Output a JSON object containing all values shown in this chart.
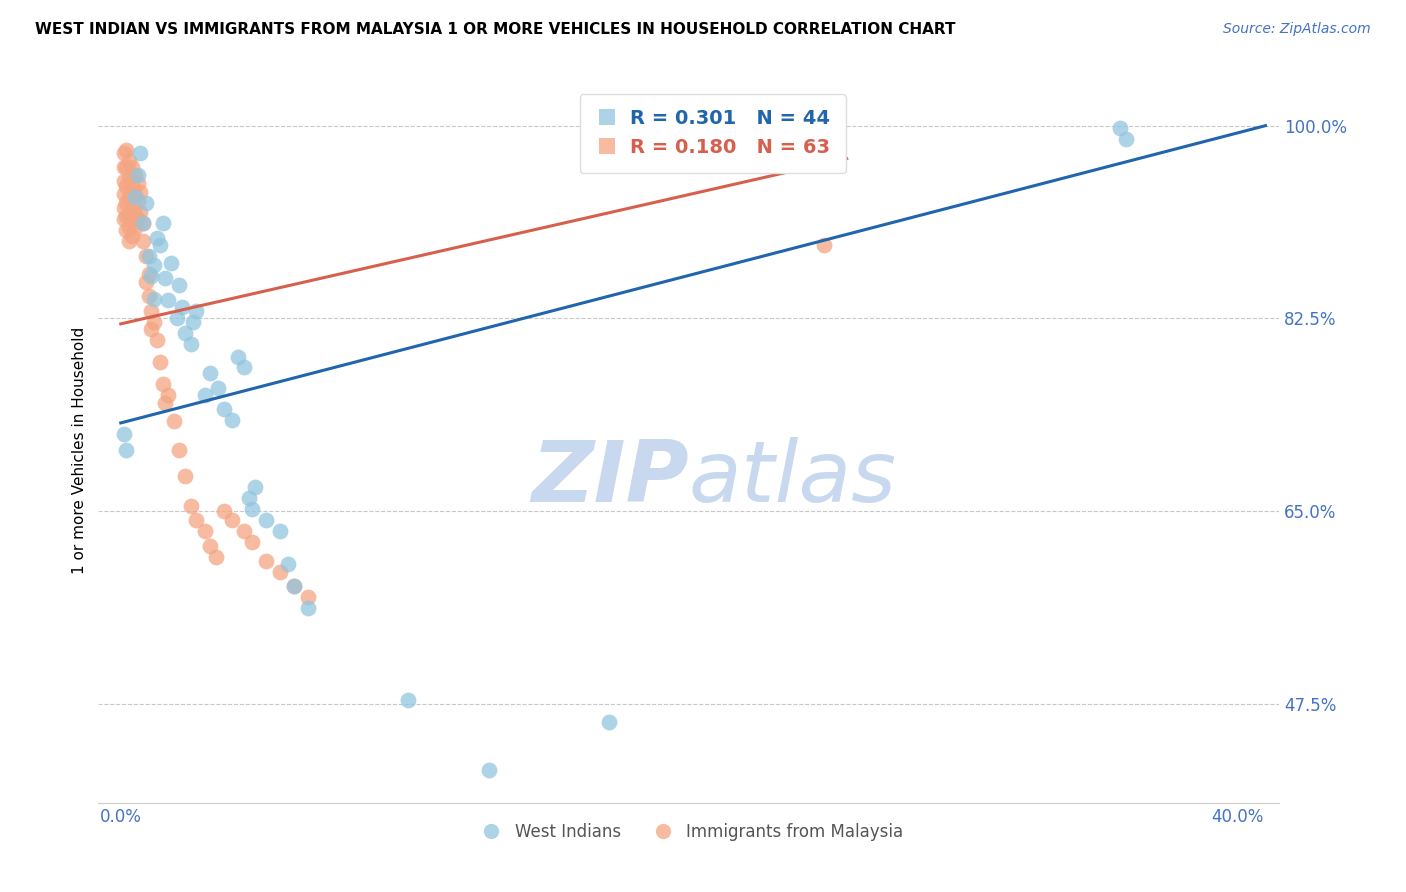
{
  "title": "WEST INDIAN VS IMMIGRANTS FROM MALAYSIA 1 OR MORE VEHICLES IN HOUSEHOLD CORRELATION CHART",
  "source": "Source: ZipAtlas.com",
  "ylabel": "1 or more Vehicles in Household",
  "ylim": [
    0.385,
    1.025
  ],
  "xlim": [
    -0.008,
    0.415
  ],
  "ytick_positions": [
    1.0,
    0.825,
    0.65,
    0.475
  ],
  "ytick_labels": [
    "100.0%",
    "82.5%",
    "65.0%",
    "47.5%"
  ],
  "xtick_positions": [
    0.0,
    0.4
  ],
  "xtick_labels": [
    "0.0%",
    "40.0%"
  ],
  "blue_R": 0.301,
  "blue_N": 44,
  "pink_R": 0.18,
  "pink_N": 63,
  "blue_color": "#92c5de",
  "pink_color": "#f4a582",
  "line_blue": "#2166ac",
  "line_pink": "#d6604d",
  "watermark_zip_color": "#c8d8ee",
  "watermark_atlas_color": "#c8d8ee",
  "blue_points": [
    [
      0.001,
      0.72
    ],
    [
      0.002,
      0.705
    ],
    [
      0.005,
      0.935
    ],
    [
      0.006,
      0.955
    ],
    [
      0.007,
      0.975
    ],
    [
      0.008,
      0.912
    ],
    [
      0.009,
      0.93
    ],
    [
      0.01,
      0.882
    ],
    [
      0.011,
      0.863
    ],
    [
      0.012,
      0.843
    ],
    [
      0.012,
      0.873
    ],
    [
      0.013,
      0.898
    ],
    [
      0.014,
      0.892
    ],
    [
      0.015,
      0.912
    ],
    [
      0.016,
      0.862
    ],
    [
      0.017,
      0.842
    ],
    [
      0.018,
      0.875
    ],
    [
      0.02,
      0.825
    ],
    [
      0.021,
      0.855
    ],
    [
      0.022,
      0.835
    ],
    [
      0.023,
      0.812
    ],
    [
      0.025,
      0.802
    ],
    [
      0.026,
      0.822
    ],
    [
      0.027,
      0.832
    ],
    [
      0.03,
      0.755
    ],
    [
      0.032,
      0.775
    ],
    [
      0.035,
      0.762
    ],
    [
      0.037,
      0.743
    ],
    [
      0.04,
      0.733
    ],
    [
      0.042,
      0.79
    ],
    [
      0.044,
      0.781
    ],
    [
      0.046,
      0.662
    ],
    [
      0.047,
      0.652
    ],
    [
      0.048,
      0.672
    ],
    [
      0.052,
      0.642
    ],
    [
      0.057,
      0.632
    ],
    [
      0.06,
      0.602
    ],
    [
      0.062,
      0.582
    ],
    [
      0.067,
      0.562
    ],
    [
      0.103,
      0.478
    ],
    [
      0.132,
      0.415
    ],
    [
      0.175,
      0.458
    ],
    [
      0.358,
      0.998
    ],
    [
      0.36,
      0.988
    ]
  ],
  "pink_points": [
    [
      0.001,
      0.975
    ],
    [
      0.001,
      0.962
    ],
    [
      0.001,
      0.95
    ],
    [
      0.001,
      0.938
    ],
    [
      0.001,
      0.925
    ],
    [
      0.001,
      0.915
    ],
    [
      0.002,
      0.978
    ],
    [
      0.002,
      0.962
    ],
    [
      0.002,
      0.945
    ],
    [
      0.002,
      0.93
    ],
    [
      0.002,
      0.918
    ],
    [
      0.002,
      0.905
    ],
    [
      0.003,
      0.968
    ],
    [
      0.003,
      0.952
    ],
    [
      0.003,
      0.935
    ],
    [
      0.003,
      0.92
    ],
    [
      0.003,
      0.908
    ],
    [
      0.003,
      0.895
    ],
    [
      0.004,
      0.962
    ],
    [
      0.004,
      0.945
    ],
    [
      0.004,
      0.928
    ],
    [
      0.004,
      0.915
    ],
    [
      0.004,
      0.9
    ],
    [
      0.005,
      0.955
    ],
    [
      0.005,
      0.938
    ],
    [
      0.005,
      0.92
    ],
    [
      0.005,
      0.907
    ],
    [
      0.006,
      0.948
    ],
    [
      0.006,
      0.932
    ],
    [
      0.006,
      0.915
    ],
    [
      0.007,
      0.94
    ],
    [
      0.007,
      0.922
    ],
    [
      0.008,
      0.912
    ],
    [
      0.008,
      0.895
    ],
    [
      0.009,
      0.882
    ],
    [
      0.009,
      0.858
    ],
    [
      0.01,
      0.865
    ],
    [
      0.01,
      0.845
    ],
    [
      0.011,
      0.832
    ],
    [
      0.011,
      0.815
    ],
    [
      0.012,
      0.822
    ],
    [
      0.013,
      0.805
    ],
    [
      0.014,
      0.785
    ],
    [
      0.015,
      0.765
    ],
    [
      0.016,
      0.748
    ],
    [
      0.017,
      0.755
    ],
    [
      0.019,
      0.732
    ],
    [
      0.021,
      0.705
    ],
    [
      0.023,
      0.682
    ],
    [
      0.025,
      0.655
    ],
    [
      0.027,
      0.642
    ],
    [
      0.03,
      0.632
    ],
    [
      0.032,
      0.618
    ],
    [
      0.034,
      0.608
    ],
    [
      0.037,
      0.65
    ],
    [
      0.04,
      0.642
    ],
    [
      0.044,
      0.632
    ],
    [
      0.047,
      0.622
    ],
    [
      0.052,
      0.605
    ],
    [
      0.057,
      0.595
    ],
    [
      0.062,
      0.582
    ],
    [
      0.067,
      0.572
    ],
    [
      0.252,
      0.892
    ]
  ],
  "blue_line_x": [
    0.0,
    0.41
  ],
  "pink_line_x": [
    0.0,
    0.26
  ]
}
